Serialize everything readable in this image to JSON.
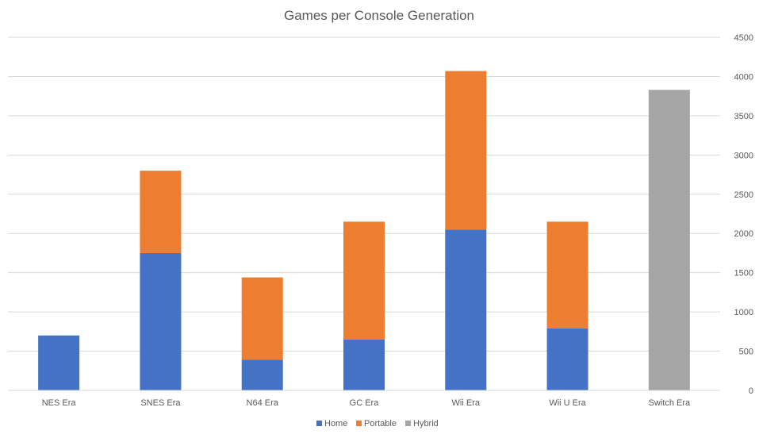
{
  "chart_data": {
    "type": "bar",
    "stacked": true,
    "title": "Games per Console Generation",
    "xlabel": "",
    "ylabel": "",
    "ylim": [
      0,
      4500
    ],
    "yticks": [
      0,
      500,
      1000,
      1500,
      2000,
      2500,
      3000,
      3500,
      4000,
      4500
    ],
    "y_axis_position": "right",
    "grid": true,
    "legend_position": "bottom",
    "categories": [
      "NES Era",
      "SNES Era",
      "N64 Era",
      "GC Era",
      "Wii Era",
      "Wii U Era",
      "Switch Era"
    ],
    "series": [
      {
        "name": "Home",
        "color": "#4472c4",
        "values": [
          700,
          1750,
          390,
          650,
          2050,
          790,
          0
        ]
      },
      {
        "name": "Portable",
        "color": "#ed7d31",
        "values": [
          0,
          1050,
          1050,
          1500,
          2020,
          1360,
          0
        ]
      },
      {
        "name": "Hybrid",
        "color": "#a5a5a5",
        "values": [
          0,
          0,
          0,
          0,
          0,
          0,
          3830
        ]
      }
    ]
  }
}
